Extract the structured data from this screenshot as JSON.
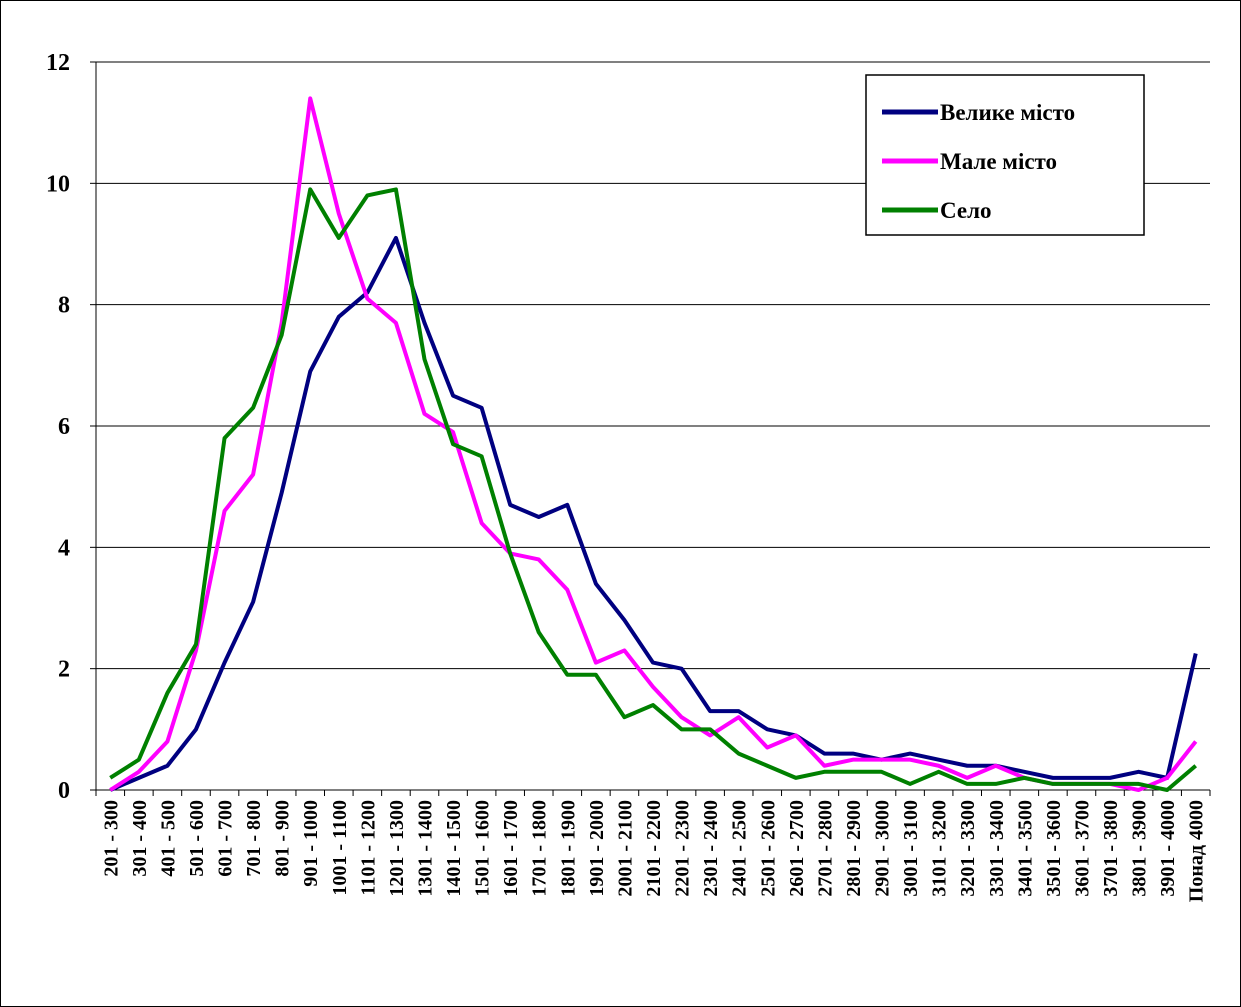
{
  "chart_data": {
    "type": "line",
    "categories": [
      "201 - 300",
      "301 - 400",
      "401 - 500",
      "501 - 600",
      "601 - 700",
      "701 - 800",
      "801 - 900",
      "901 - 1000",
      "1001 - 1100",
      "1101 - 1200",
      "1201 - 1300",
      "1301 - 1400",
      "1401 - 1500",
      "1501 - 1600",
      "1601 - 1700",
      "1701 - 1800",
      "1801 - 1900",
      "1901 - 2000",
      "2001 - 2100",
      "2101 - 2200",
      "2201 - 2300",
      "2301 - 2400",
      "2401 - 2500",
      "2501 - 2600",
      "2601 - 2700",
      "2701 - 2800",
      "2801 - 2900",
      "2901 - 3000",
      "3001 - 3100",
      "3101 - 3200",
      "3201 - 3300",
      "3301 - 3400",
      "3401 - 3500",
      "3501 - 3600",
      "3601 - 3700",
      "3701 - 3800",
      "3801 - 3900",
      "3901 - 4000",
      "Понад 4000"
    ],
    "series": [
      {
        "name": "Велике місто",
        "color": "#000080",
        "values": [
          0,
          0.2,
          0.4,
          1.0,
          2.1,
          3.1,
          4.9,
          6.9,
          7.8,
          8.2,
          9.1,
          7.7,
          6.5,
          6.3,
          4.7,
          4.5,
          4.7,
          3.4,
          2.8,
          2.1,
          2.0,
          1.3,
          1.3,
          1.0,
          0.9,
          0.6,
          0.6,
          0.5,
          0.6,
          0.5,
          0.4,
          0.4,
          0.3,
          0.2,
          0.2,
          0.2,
          0.3,
          0.2,
          2.25
        ]
      },
      {
        "name": "Мале місто",
        "color": "#ff00ff",
        "values": [
          0,
          0.3,
          0.8,
          2.3,
          4.6,
          5.2,
          7.7,
          11.4,
          9.5,
          8.1,
          7.7,
          6.2,
          5.9,
          4.4,
          3.9,
          3.8,
          3.3,
          2.1,
          2.3,
          1.7,
          1.2,
          0.9,
          1.2,
          0.7,
          0.9,
          0.4,
          0.5,
          0.5,
          0.5,
          0.4,
          0.2,
          0.4,
          0.2,
          0.1,
          0.1,
          0.1,
          0.0,
          0.2,
          0.8
        ]
      },
      {
        "name": "Село",
        "color": "#008000",
        "values": [
          0.2,
          0.5,
          1.6,
          2.4,
          5.8,
          6.3,
          7.5,
          9.9,
          9.1,
          9.8,
          9.9,
          7.1,
          5.7,
          5.5,
          3.9,
          2.6,
          1.9,
          1.9,
          1.2,
          1.4,
          1.0,
          1.0,
          0.6,
          0.4,
          0.2,
          0.3,
          0.3,
          0.3,
          0.1,
          0.3,
          0.1,
          0.1,
          0.2,
          0.1,
          0.1,
          0.1,
          0.1,
          0.0,
          0.4
        ]
      }
    ],
    "ylim": [
      0,
      12
    ],
    "yticks": [
      0,
      2,
      4,
      6,
      8,
      10,
      12
    ],
    "grid": true,
    "legend": "top-right"
  }
}
